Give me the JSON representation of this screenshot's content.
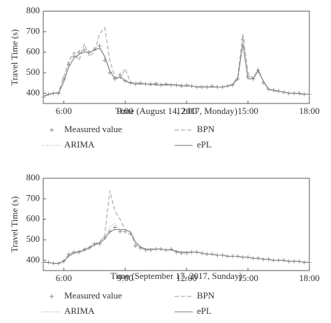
{
  "chart_data": [
    {
      "type": "line",
      "x_label": "Time (August 14, 2017, Monday)",
      "y_label": "Travel Time (s)",
      "x": [
        5,
        5.25,
        5.5,
        5.75,
        6,
        6.25,
        6.5,
        6.75,
        7,
        7.25,
        7.5,
        7.75,
        8,
        8.25,
        8.5,
        8.75,
        9,
        9.25,
        9.5,
        9.75,
        10,
        10.25,
        10.5,
        10.75,
        11,
        11.25,
        11.5,
        11.75,
        12,
        12.25,
        12.5,
        12.75,
        13,
        13.25,
        13.5,
        13.75,
        14,
        14.25,
        14.5,
        14.75,
        15,
        15.25,
        15.5,
        15.75,
        16,
        16.25,
        16.5,
        16.75,
        17,
        17.25,
        17.5,
        17.75,
        18
      ],
      "xlim": [
        5,
        18
      ],
      "xticks": [
        {
          "value": 6,
          "label": "6:00"
        },
        {
          "value": 9,
          "label": "9:00"
        },
        {
          "value": 12,
          "label": "12:00"
        },
        {
          "value": 15,
          "label": "15:00"
        },
        {
          "value": 18,
          "label": "18:00"
        }
      ],
      "ylim": [
        350,
        800
      ],
      "yticks": [
        400,
        500,
        600,
        700,
        800
      ],
      "series": [
        {
          "name": "Measured value",
          "color": "#888888",
          "style": "marker",
          "values": [
            380,
            395,
            400,
            400,
            470,
            540,
            580,
            600,
            610,
            600,
            615,
            630,
            560,
            500,
            470,
            490,
            460,
            450,
            445,
            450,
            445,
            445,
            445,
            440,
            445,
            440,
            440,
            435,
            440,
            435,
            430,
            430,
            430,
            435,
            430,
            430,
            435,
            440,
            470,
            660,
            480,
            470,
            510,
            450,
            420,
            415,
            410,
            405,
            400,
            400,
            400,
            395,
            395
          ]
        },
        {
          "name": "BPN",
          "color": "#999999",
          "style": "dashed",
          "values": [
            385,
            390,
            400,
            405,
            480,
            560,
            600,
            560,
            640,
            580,
            600,
            690,
            720,
            560,
            480,
            470,
            520,
            455,
            450,
            450,
            445,
            440,
            450,
            445,
            440,
            445,
            440,
            440,
            440,
            435,
            430,
            435,
            430,
            435,
            430,
            430,
            435,
            445,
            480,
            690,
            500,
            470,
            520,
            455,
            420,
            410,
            410,
            405,
            400,
            400,
            395,
            395,
            395
          ]
        },
        {
          "name": "ARIMA",
          "color": "#aaaaaa",
          "style": "dotted",
          "values": [
            380,
            395,
            400,
            400,
            465,
            545,
            585,
            600,
            615,
            600,
            610,
            640,
            570,
            505,
            470,
            485,
            465,
            450,
            445,
            450,
            445,
            445,
            445,
            440,
            445,
            440,
            440,
            435,
            440,
            435,
            430,
            430,
            430,
            435,
            430,
            430,
            435,
            440,
            480,
            670,
            490,
            470,
            505,
            455,
            420,
            415,
            410,
            405,
            400,
            400,
            400,
            395,
            395
          ]
        },
        {
          "name": "ePL",
          "color": "#777777",
          "style": "solid",
          "values": [
            385,
            395,
            400,
            400,
            455,
            530,
            570,
            590,
            600,
            600,
            610,
            620,
            580,
            510,
            470,
            480,
            460,
            450,
            445,
            445,
            445,
            445,
            440,
            440,
            440,
            440,
            440,
            435,
            435,
            435,
            430,
            430,
            430,
            430,
            430,
            430,
            435,
            440,
            470,
            640,
            470,
            470,
            510,
            460,
            420,
            415,
            410,
            405,
            400,
            400,
            400,
            395,
            395
          ]
        }
      ]
    },
    {
      "type": "line",
      "x_label": "Time (September 17, 2017, Sunday)",
      "y_label": "Travel Time (s)",
      "x": [
        5,
        5.25,
        5.5,
        5.75,
        6,
        6.25,
        6.5,
        6.75,
        7,
        7.25,
        7.5,
        7.75,
        8,
        8.25,
        8.5,
        8.75,
        9,
        9.25,
        9.5,
        9.75,
        10,
        10.25,
        10.5,
        10.75,
        11,
        11.25,
        11.5,
        11.75,
        12,
        12.25,
        12.5,
        12.75,
        13,
        13.25,
        13.5,
        13.75,
        14,
        14.25,
        14.5,
        14.75,
        15,
        15.25,
        15.5,
        15.75,
        16,
        16.25,
        16.5,
        16.75,
        17,
        17.25,
        17.5,
        17.75,
        18
      ],
      "xlim": [
        5,
        18
      ],
      "xticks": [
        {
          "value": 6,
          "label": "6:00"
        },
        {
          "value": 9,
          "label": "9:00"
        },
        {
          "value": 12,
          "label": "12:00"
        },
        {
          "value": 15,
          "label": "15:00"
        },
        {
          "value": 18,
          "label": "18:00"
        }
      ],
      "ylim": [
        350,
        800
      ],
      "yticks": [
        400,
        500,
        600,
        700,
        800
      ],
      "series": [
        {
          "name": "Measured value",
          "color": "#888888",
          "style": "marker",
          "values": [
            390,
            390,
            385,
            385,
            395,
            430,
            440,
            440,
            450,
            460,
            480,
            480,
            510,
            540,
            560,
            540,
            540,
            530,
            470,
            460,
            450,
            450,
            455,
            455,
            450,
            455,
            440,
            435,
            435,
            440,
            440,
            435,
            430,
            430,
            425,
            425,
            420,
            420,
            420,
            415,
            415,
            410,
            410,
            405,
            405,
            400,
            400,
            400,
            395,
            395,
            395,
            390,
            390
          ]
        },
        {
          "name": "BPN",
          "color": "#999999",
          "style": "dashed",
          "values": [
            390,
            390,
            385,
            385,
            400,
            430,
            440,
            445,
            455,
            465,
            480,
            490,
            520,
            740,
            640,
            600,
            550,
            540,
            480,
            460,
            450,
            450,
            455,
            455,
            450,
            455,
            440,
            435,
            435,
            440,
            440,
            435,
            430,
            430,
            425,
            425,
            420,
            420,
            420,
            415,
            415,
            410,
            410,
            405,
            405,
            400,
            400,
            400,
            395,
            395,
            395,
            390,
            390
          ]
        },
        {
          "name": "ARIMA",
          "color": "#aaaaaa",
          "style": "dotted",
          "values": [
            390,
            390,
            385,
            385,
            395,
            425,
            440,
            440,
            450,
            460,
            475,
            480,
            505,
            560,
            580,
            545,
            540,
            530,
            475,
            460,
            450,
            450,
            455,
            455,
            450,
            455,
            440,
            435,
            435,
            440,
            440,
            435,
            430,
            430,
            425,
            425,
            420,
            420,
            420,
            415,
            415,
            410,
            410,
            405,
            405,
            400,
            400,
            400,
            395,
            395,
            395,
            390,
            390
          ]
        },
        {
          "name": "ePL",
          "color": "#777777",
          "style": "solid",
          "values": [
            390,
            390,
            385,
            385,
            395,
            420,
            435,
            440,
            450,
            460,
            475,
            485,
            505,
            540,
            550,
            550,
            550,
            540,
            490,
            465,
            455,
            455,
            455,
            455,
            450,
            450,
            445,
            440,
            440,
            440,
            440,
            435,
            430,
            430,
            425,
            425,
            420,
            420,
            420,
            415,
            415,
            410,
            410,
            405,
            405,
            400,
            400,
            400,
            395,
            395,
            395,
            390,
            390
          ]
        }
      ]
    }
  ]
}
